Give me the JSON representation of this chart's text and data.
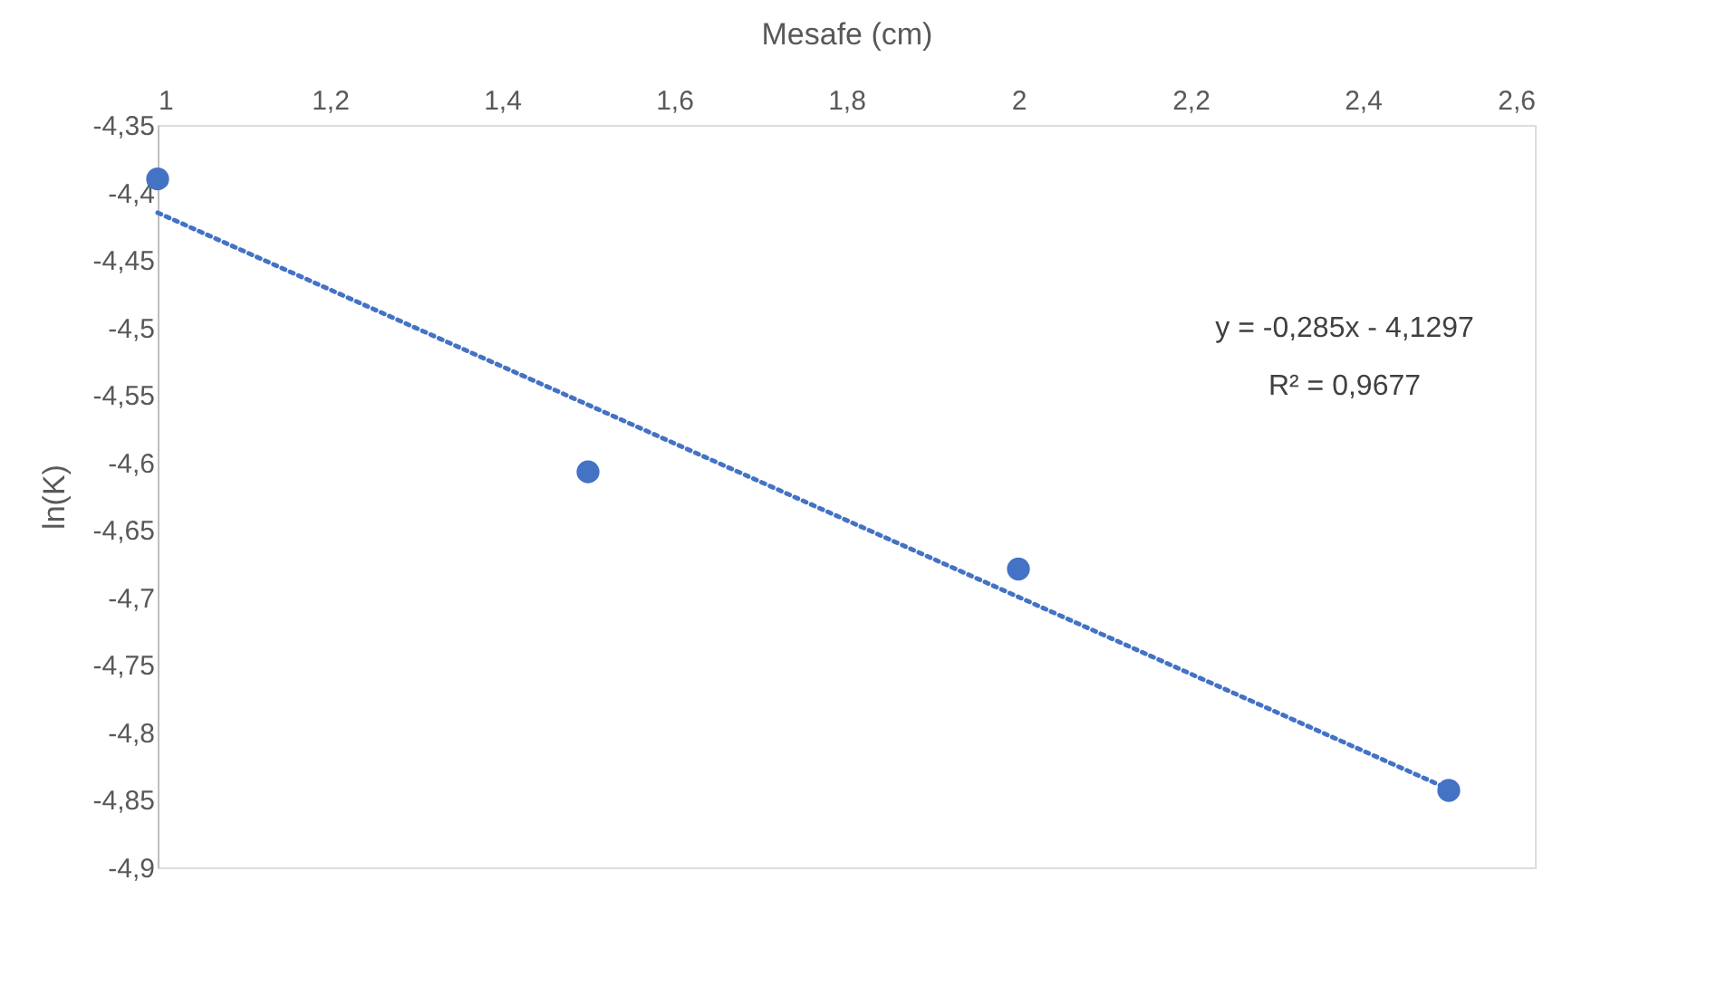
{
  "chart_data": {
    "type": "scatter",
    "xlabel": "Mesafe (cm)",
    "ylabel": "ln(K)",
    "x": [
      1,
      1.5,
      2,
      2.5
    ],
    "series": [
      {
        "color": "#4472c4",
        "marker": "circle",
        "values": [
          -4.39,
          -4.607,
          -4.679,
          -4.843
        ]
      },
      {
        "type": "line",
        "color": "#4472c4",
        "line_style": "dotted",
        "x": [
          1,
          2.5
        ],
        "values": [
          -4.415,
          -4.842
        ]
      }
    ],
    "xlim": [
      1,
      2.6
    ],
    "xticks": [
      {
        "value": 1,
        "label": "1"
      },
      {
        "value": 1.2,
        "label": "1,2"
      },
      {
        "value": 1.4,
        "label": "1,4"
      },
      {
        "value": 1.6,
        "label": "1,6"
      },
      {
        "value": 1.8,
        "label": "1,8"
      },
      {
        "value": 2,
        "label": "2"
      },
      {
        "value": 2.2,
        "label": "2,2"
      },
      {
        "value": 2.4,
        "label": "2,4"
      },
      {
        "value": 2.6,
        "label": "2,6"
      }
    ],
    "ylim": [
      -4.9,
      -4.35
    ],
    "yticks": [
      {
        "value": -4.35,
        "label": "-4,35"
      },
      {
        "value": -4.4,
        "label": "-4,4"
      },
      {
        "value": -4.45,
        "label": "-4,45"
      },
      {
        "value": -4.5,
        "label": "-4,5"
      },
      {
        "value": -4.55,
        "label": "-4,55"
      },
      {
        "value": -4.6,
        "label": "-4,6"
      },
      {
        "value": -4.65,
        "label": "-4,65"
      },
      {
        "value": -4.7,
        "label": "-4,7"
      },
      {
        "value": -4.75,
        "label": "-4,75"
      },
      {
        "value": -4.8,
        "label": "-4,8"
      },
      {
        "value": -4.85,
        "label": "-4,85"
      },
      {
        "value": -4.9,
        "label": "-4,9"
      }
    ],
    "annotations": [
      "y = -0,285x - 4,1297",
      "R² = 0,9677"
    ],
    "grid": false
  }
}
